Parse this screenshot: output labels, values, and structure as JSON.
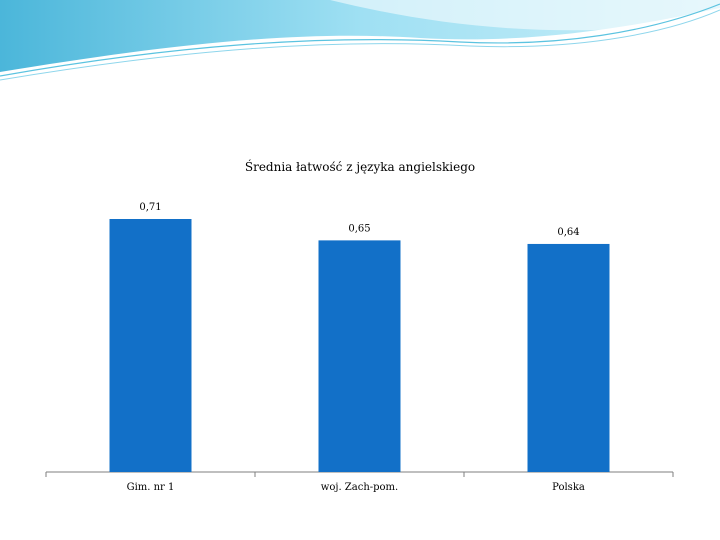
{
  "slide": {
    "accent_color": "#5bc3e0",
    "banner_color": "#7fd2ec"
  },
  "chart_data": {
    "type": "bar",
    "title": "Średnia łatwość z języka angielskiego",
    "categories": [
      "Gim. nr 1",
      "woj. Zach-pom.",
      "Polska"
    ],
    "values": [
      0.71,
      0.65,
      0.64
    ],
    "value_labels": [
      "0,71",
      "0,65",
      "0,64"
    ],
    "xlabel": "",
    "ylabel": "",
    "ylim": [
      0,
      0.71
    ],
    "grid": false,
    "legend": "none",
    "bar_color": "#1270c8"
  }
}
